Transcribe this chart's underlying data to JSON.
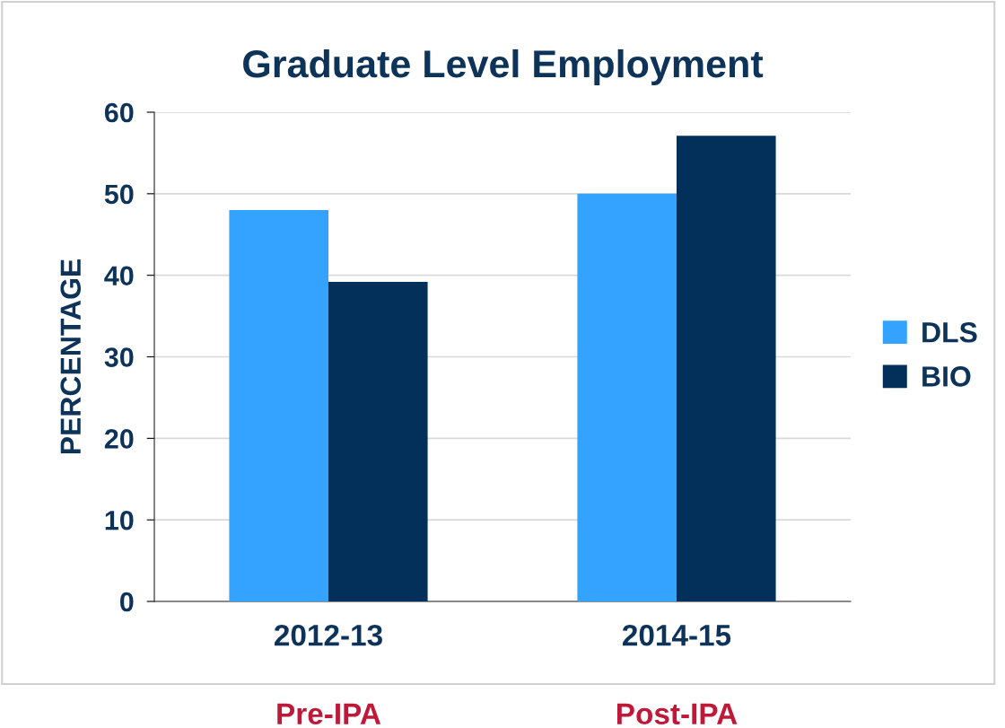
{
  "chart_data": {
    "type": "bar",
    "title": "Graduate Level Employment",
    "ylabel": "PERCENTAGE",
    "categories": [
      "2012-13",
      "2014-15"
    ],
    "series": [
      {
        "name": "DLS",
        "color": "#33a3ff",
        "values": [
          48,
          50
        ]
      },
      {
        "name": "BIO",
        "color": "#02305a",
        "values": [
          39.2,
          57.1
        ]
      }
    ],
    "ylim": [
      0,
      60
    ],
    "yticks": [
      0,
      10,
      20,
      30,
      40,
      50,
      60
    ],
    "grid": "y",
    "legend": "right",
    "annotations": [
      "Pre-IPA",
      "Post-IPA"
    ]
  }
}
